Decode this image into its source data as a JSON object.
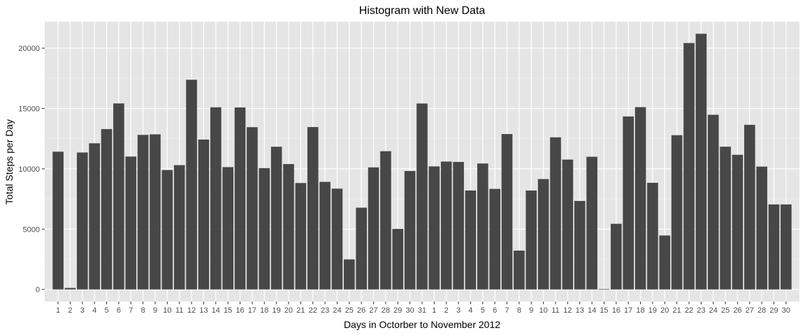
{
  "chart_data": {
    "type": "bar",
    "title": "Histogram with New Data",
    "xlabel": "Days in Octorber to November 2012",
    "ylabel": "Total Steps per Day",
    "ylim": [
      -1000,
      22200
    ],
    "yticks": [
      0,
      5000,
      10000,
      15000,
      20000
    ],
    "ytick_labels": [
      "0",
      "5000",
      "10000",
      "15000",
      "20000"
    ],
    "grid": true,
    "legend": "none",
    "categories": [
      "1",
      "2",
      "3",
      "4",
      "5",
      "6",
      "7",
      "8",
      "9",
      "10",
      "11",
      "12",
      "13",
      "14",
      "15",
      "16",
      "17",
      "18",
      "19",
      "20",
      "21",
      "22",
      "23",
      "24",
      "25",
      "26",
      "27",
      "28",
      "29",
      "30",
      "31",
      "1",
      "2",
      "3",
      "4",
      "5",
      "6",
      "7",
      "8",
      "9",
      "10",
      "11",
      "12",
      "13",
      "14",
      "15",
      "16",
      "17",
      "18",
      "19",
      "20",
      "21",
      "22",
      "23",
      "24",
      "25",
      "26",
      "27",
      "28",
      "29",
      "30"
    ],
    "values": [
      11420,
      126,
      11352,
      12116,
      13294,
      15420,
      11015,
      12811,
      12858,
      9900,
      10304,
      17382,
      12426,
      15098,
      10139,
      15084,
      13452,
      10056,
      11829,
      10395,
      8821,
      13460,
      8918,
      8355,
      2492,
      6778,
      10119,
      11458,
      5018,
      9819,
      15414,
      10200,
      10600,
      10571,
      8200,
      10439,
      8334,
      12883,
      3219,
      8200,
      9150,
      12609,
      10765,
      7336,
      11000,
      41,
      5441,
      14339,
      15110,
      8841,
      4472,
      12787,
      20427,
      21194,
      14478,
      11834,
      11162,
      13646,
      10183,
      7047,
      7047
    ],
    "colors": {
      "bar": "#474747",
      "panel": "#e5e5e5",
      "grid_major": "#ffffff",
      "grid_minor": "#f1f1f1",
      "tick_text": "#4d4d4d",
      "tick_mark": "#333333"
    }
  }
}
